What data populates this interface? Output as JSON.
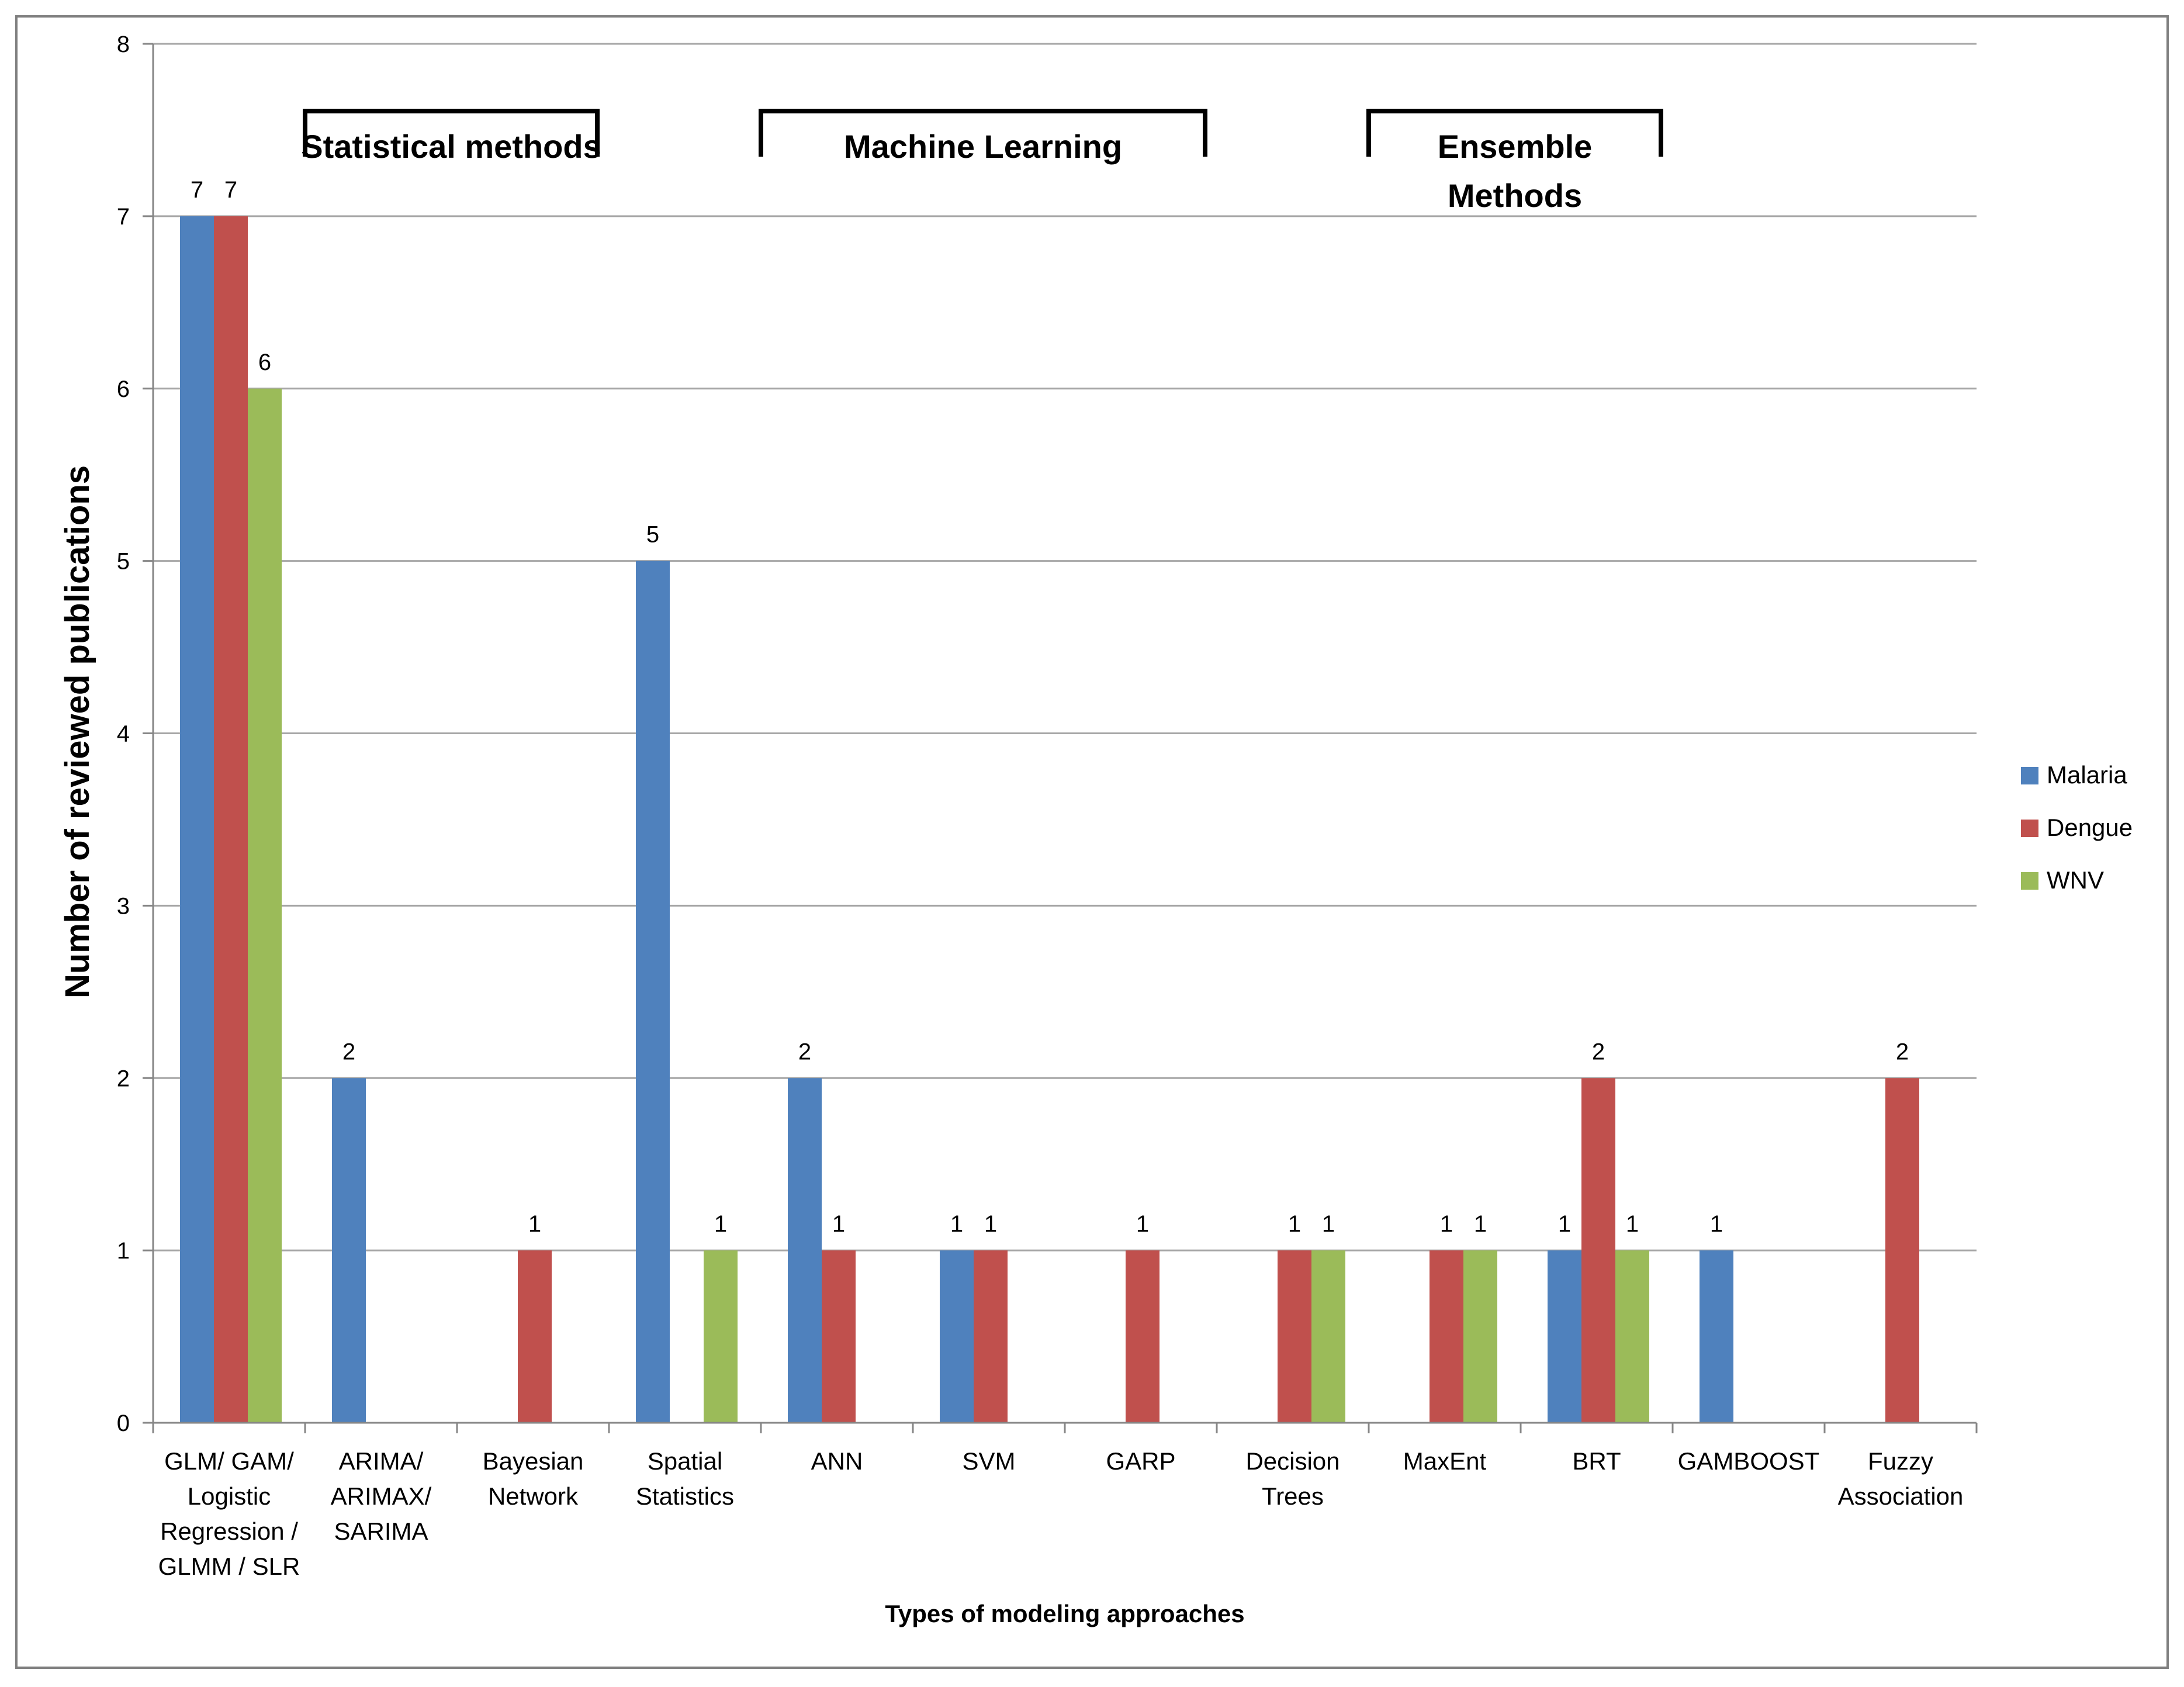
{
  "chart_data": {
    "type": "bar",
    "title": "",
    "xlabel": "Types of modeling approaches",
    "ylabel": "Number of reviewed publications",
    "ylim": [
      0,
      8
    ],
    "yticks": [
      "0",
      "1",
      "2",
      "3",
      "4",
      "5",
      "6",
      "7",
      "8"
    ],
    "grid": true,
    "legend_position": "right",
    "categories": [
      [
        "GLM/ GAM/",
        "Logistic",
        "Regression /",
        "GLMM / SLR"
      ],
      [
        "ARIMA/",
        "ARIMAX/",
        "SARIMA"
      ],
      [
        "Bayesian",
        "Network"
      ],
      [
        "Spatial",
        "Statistics"
      ],
      [
        "ANN"
      ],
      [
        "SVM"
      ],
      [
        "GARP"
      ],
      [
        "Decision",
        "Trees"
      ],
      [
        "MaxEnt"
      ],
      [
        "BRT"
      ],
      [
        "GAMBOOST"
      ],
      [
        "Fuzzy",
        "Association"
      ]
    ],
    "series": [
      {
        "name": "Malaria",
        "color": "#4F81BD",
        "values": [
          7,
          2,
          0,
          5,
          2,
          1,
          0,
          0,
          0,
          1,
          1,
          0
        ]
      },
      {
        "name": "Dengue",
        "color": "#C0504D",
        "values": [
          7,
          0,
          1,
          0,
          1,
          1,
          1,
          1,
          1,
          2,
          0,
          2
        ]
      },
      {
        "name": "WNV",
        "color": "#9BBB59",
        "values": [
          6,
          0,
          0,
          1,
          0,
          0,
          0,
          1,
          1,
          1,
          0,
          0
        ]
      }
    ],
    "group_annotations": [
      {
        "lines": [
          "Statistical methods"
        ],
        "from_category": 1,
        "to_category": 3
      },
      {
        "lines": [
          "Machine Learning"
        ],
        "from_category": 4,
        "to_category": 7
      },
      {
        "lines": [
          "Ensemble",
          "Methods"
        ],
        "from_category": 8,
        "to_category": 10
      }
    ]
  }
}
